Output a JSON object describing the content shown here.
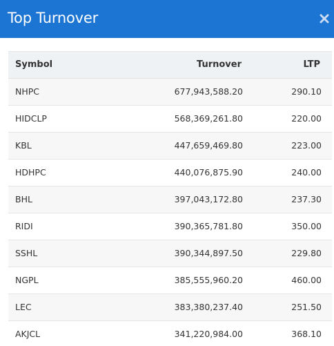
{
  "modal": {
    "title": "Top Turnover",
    "close_icon": "close-x-icon"
  },
  "colors": {
    "header_bg": "#1c75d3",
    "header_text": "#ffffff",
    "table_header_bg": "#eff2f5",
    "row_stripe": "#f7f7f7"
  },
  "table": {
    "headers": {
      "symbol": "Symbol",
      "turnover": "Turnover",
      "ltp": "LTP"
    },
    "rows": [
      {
        "symbol": "NHPC",
        "turnover": "677,943,588.20",
        "ltp": "290.10"
      },
      {
        "symbol": "HIDCLP",
        "turnover": "568,369,261.80",
        "ltp": "220.00"
      },
      {
        "symbol": "KBL",
        "turnover": "447,659,469.80",
        "ltp": "223.00"
      },
      {
        "symbol": "HDHPC",
        "turnover": "440,076,875.90",
        "ltp": "240.00"
      },
      {
        "symbol": "BHL",
        "turnover": "397,043,172.80",
        "ltp": "237.30"
      },
      {
        "symbol": "RIDI",
        "turnover": "390,365,781.80",
        "ltp": "350.00"
      },
      {
        "symbol": "SSHL",
        "turnover": "390,344,897.50",
        "ltp": "229.80"
      },
      {
        "symbol": "NGPL",
        "turnover": "385,555,960.20",
        "ltp": "460.00"
      },
      {
        "symbol": "LEC",
        "turnover": "383,380,237.40",
        "ltp": "251.50"
      },
      {
        "symbol": "AKJCL",
        "turnover": "341,220,984.00",
        "ltp": "368.10"
      }
    ]
  }
}
